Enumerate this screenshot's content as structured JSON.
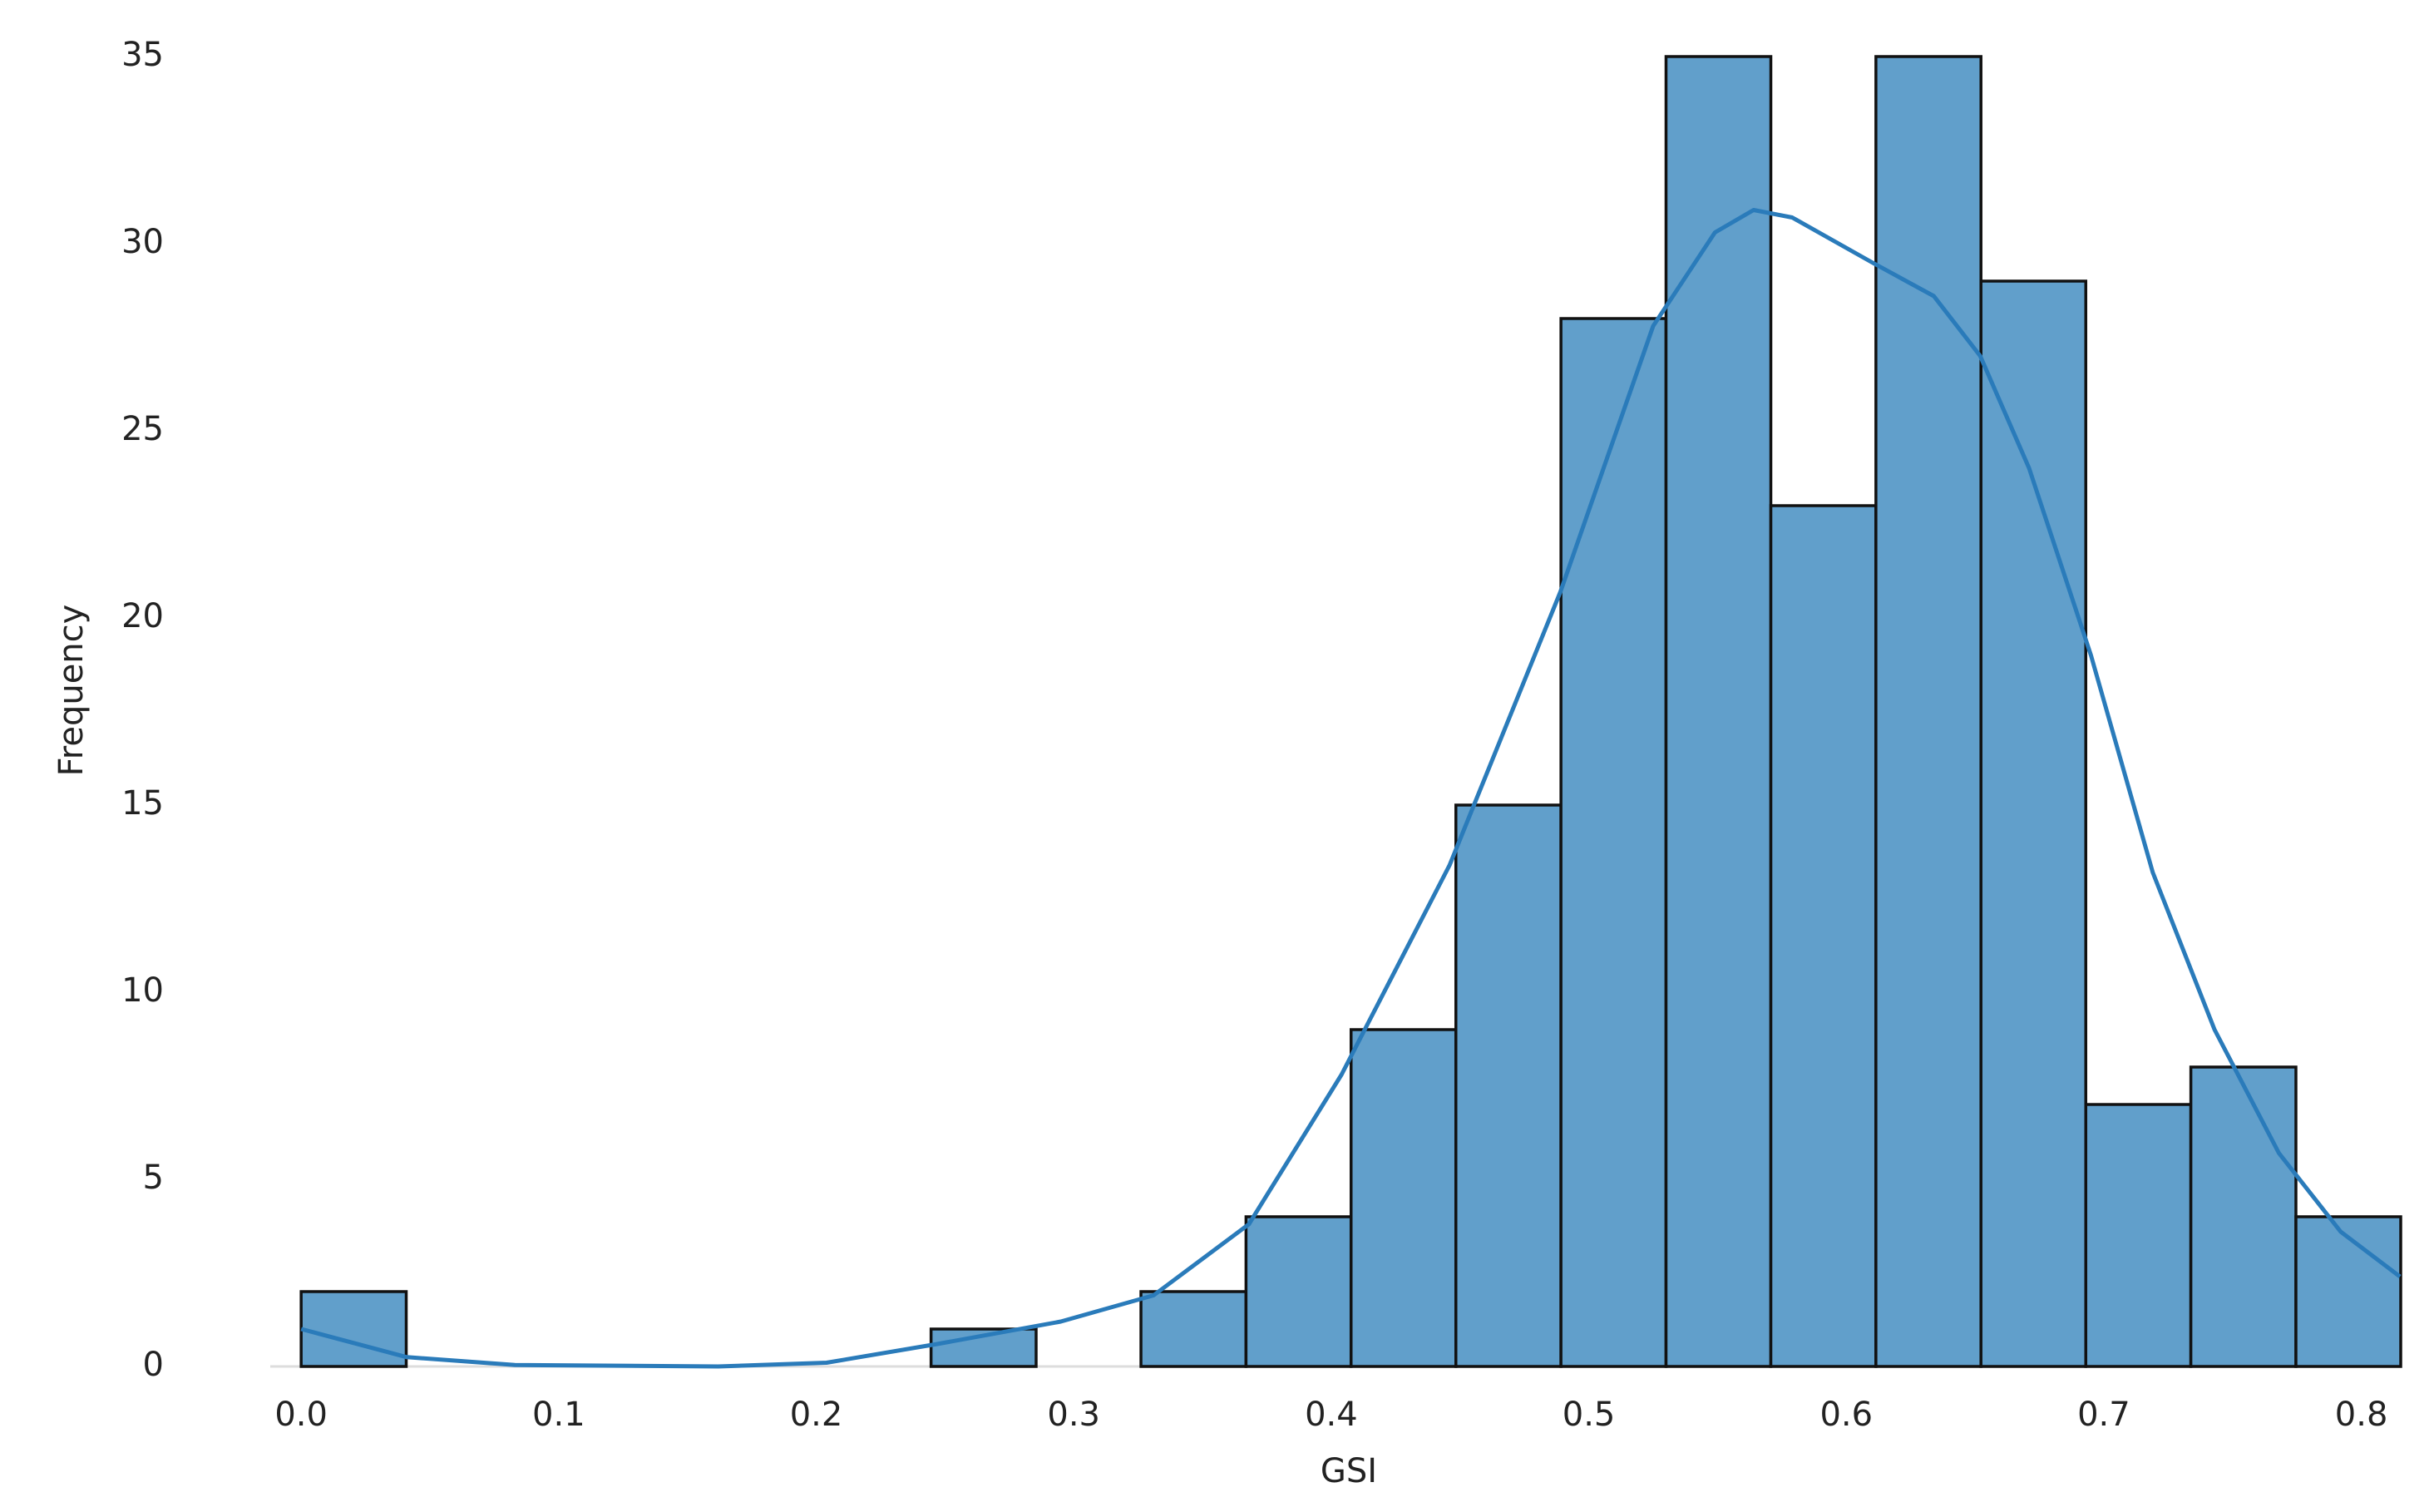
{
  "chart_data": {
    "type": "histogram",
    "x_label": "GSI",
    "y_label": "Frequency",
    "bins": [
      0,
      0.0408,
      0.0815,
      0.1223,
      0.1631,
      0.2038,
      0.2446,
      0.2854,
      0.3261,
      0.3669,
      0.4077,
      0.4484,
      0.4892,
      0.53,
      0.5707,
      0.6115,
      0.6523,
      0.693,
      0.7338,
      0.7746,
      0.8153
    ],
    "values": [
      2,
      0,
      0,
      0,
      0,
      0,
      1,
      0,
      2,
      4,
      9,
      15,
      28,
      35,
      23,
      35,
      29,
      7,
      8,
      4
    ],
    "color": "#619fcb",
    "edge_color": "#111111",
    "kde": {
      "color": "#2a7bba",
      "x": [
        0,
        0.041,
        0.083,
        0.162,
        0.204,
        0.247,
        0.295,
        0.331,
        0.368,
        0.404,
        0.446,
        0.489,
        0.525,
        0.549,
        0.564,
        0.579,
        0.61,
        0.634,
        0.652,
        0.671,
        0.695,
        0.719,
        0.743,
        0.768,
        0.792,
        0.815
      ],
      "y": [
        1.0,
        0.25,
        0.04,
        0.0,
        0.1,
        0.6,
        1.2,
        1.9,
        3.8,
        7.8,
        13.4,
        20.7,
        27.8,
        30.3,
        30.9,
        30.7,
        29.5,
        28.6,
        27,
        24,
        19,
        13.2,
        9,
        5.7,
        3.6,
        2.4
      ]
    },
    "xlim": [
      -0.012,
      0.8153
    ],
    "ylim": [
      0,
      36
    ],
    "xticks": [
      {
        "value": 0,
        "label": "0.0"
      },
      0.1,
      0.2,
      0.3,
      0.4,
      0.5,
      0.6,
      0.7,
      0.8
    ],
    "yticks": [
      0,
      5,
      10,
      15,
      20,
      25,
      30,
      35
    ],
    "grid": false
  }
}
